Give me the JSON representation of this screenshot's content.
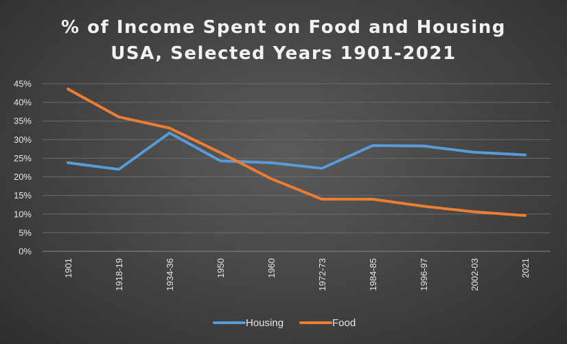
{
  "chart_data": {
    "type": "line",
    "title": "% of Income Spent on Food and Housing",
    "subtitle": "USA, Selected Years 1901-2021",
    "categories": [
      "1901",
      "1918-19",
      "1934-36",
      "1950",
      "1960",
      "1972-73",
      "1984-85",
      "1996-97",
      "2002-03",
      "2021"
    ],
    "series": [
      {
        "name": "Housing",
        "color": "#5b9bd5",
        "values": [
          23.8,
          22.0,
          31.8,
          24.3,
          23.8,
          22.3,
          28.4,
          28.3,
          26.6,
          25.9
        ]
      },
      {
        "name": "Food",
        "color": "#ed7d31",
        "values": [
          43.6,
          36.1,
          33.1,
          26.5,
          19.5,
          14.0,
          14.0,
          12.1,
          10.6,
          9.6
        ]
      }
    ],
    "y_ticks": [
      "0%",
      "5%",
      "10%",
      "15%",
      "20%",
      "25%",
      "30%",
      "35%",
      "40%",
      "45%"
    ],
    "ylim": [
      0,
      45
    ],
    "xlabel": "",
    "ylabel": "",
    "legend_position": "bottom",
    "grid": true
  }
}
